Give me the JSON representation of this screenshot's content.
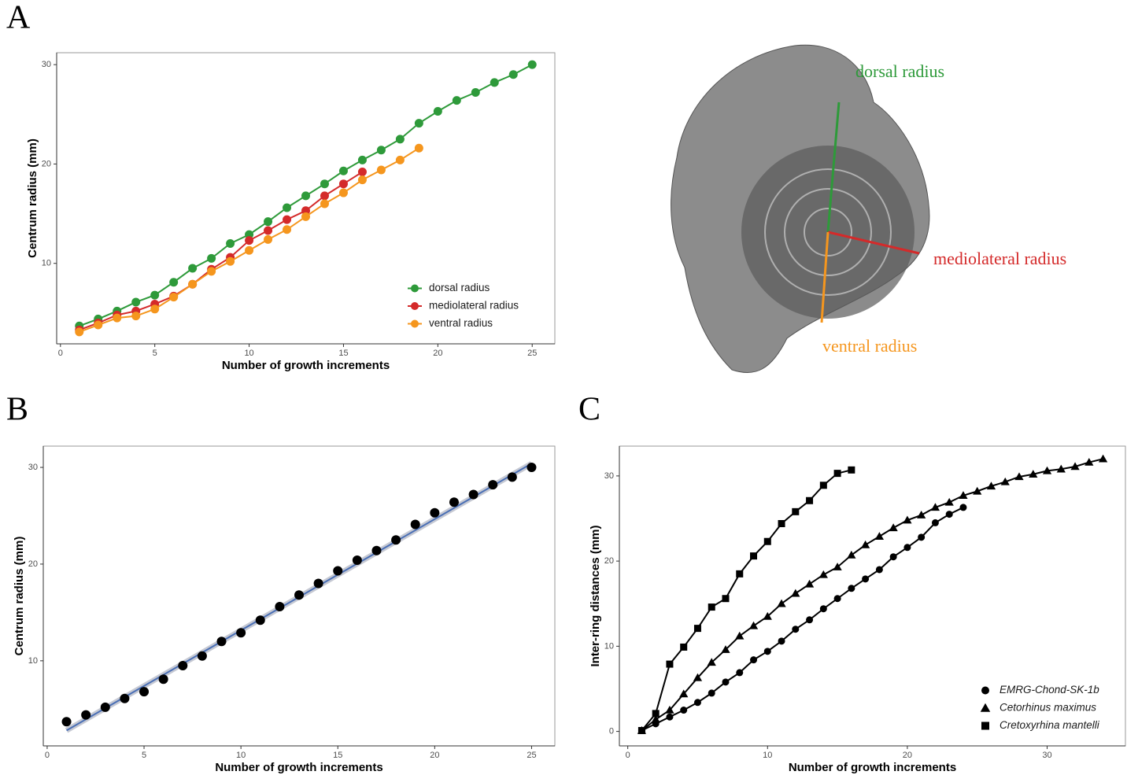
{
  "panel_labels": [
    "A",
    "B",
    "C"
  ],
  "specimen_image": {
    "labels": [
      "dorsal radius",
      "mediolateral radius",
      "ventral radius"
    ]
  },
  "chart_data": [
    {
      "type": "line",
      "x_label": "Number of growth increments",
      "y_label": "Centrum radius (mm)",
      "xlim": [
        -0.2,
        26.2
      ],
      "ylim": [
        1.9,
        31.2
      ],
      "xticks": [
        0,
        5,
        10,
        15,
        20,
        25
      ],
      "yticks": [
        10,
        20,
        30
      ],
      "legend": "bottom-right",
      "series": [
        {
          "name": "dorsal radius",
          "color": "#2e9a3a",
          "marker": "circle",
          "x": [
            1,
            2,
            3,
            4,
            5,
            6,
            7,
            8,
            9,
            10,
            11,
            12,
            13,
            14,
            15,
            16,
            17,
            18,
            19,
            20,
            21,
            22,
            23,
            24,
            25
          ],
          "values": [
            3.7,
            4.4,
            5.2,
            6.1,
            6.8,
            8.1,
            9.5,
            10.5,
            12.0,
            12.9,
            14.2,
            15.6,
            16.8,
            18.0,
            19.3,
            20.4,
            21.4,
            22.5,
            24.1,
            25.3,
            26.4,
            27.2,
            28.2,
            29.0,
            30.0
          ]
        },
        {
          "name": "mediolateral radius",
          "color": "#d42a2a",
          "marker": "circle",
          "x": [
            1,
            2,
            3,
            4,
            5,
            6,
            7,
            8,
            9,
            10,
            11,
            12,
            13,
            14,
            15,
            16
          ],
          "values": [
            3.3,
            4.0,
            4.8,
            5.2,
            5.9,
            6.7,
            7.9,
            9.4,
            10.6,
            12.3,
            13.3,
            14.4,
            15.3,
            16.8,
            18.0,
            19.2
          ]
        },
        {
          "name": "ventral radius",
          "color": "#f5961e",
          "marker": "circle",
          "x": [
            1,
            2,
            3,
            4,
            5,
            6,
            7,
            8,
            9,
            10,
            11,
            12,
            13,
            14,
            15,
            16,
            17,
            18,
            19
          ],
          "values": [
            3.1,
            3.8,
            4.5,
            4.7,
            5.4,
            6.6,
            7.9,
            9.2,
            10.2,
            11.3,
            12.4,
            13.4,
            14.7,
            16.0,
            17.1,
            18.4,
            19.4,
            20.4,
            21.6
          ]
        }
      ]
    },
    {
      "type": "scatter",
      "x_label": "Number of growth increments",
      "y_label": "Centrum radius (mm)",
      "xlim": [
        -0.2,
        26.2
      ],
      "ylim": [
        1.2,
        32.2
      ],
      "xticks": [
        0,
        5,
        10,
        15,
        20,
        25
      ],
      "yticks": [
        10,
        20,
        30
      ],
      "series": [
        {
          "color": "#000000",
          "marker": "circle",
          "x": [
            1,
            2,
            3,
            4,
            5,
            6,
            7,
            8,
            9,
            10,
            11,
            12,
            13,
            14,
            15,
            16,
            17,
            18,
            19,
            20,
            21,
            22,
            23,
            24,
            25
          ],
          "values": [
            3.7,
            4.4,
            5.2,
            6.1,
            6.8,
            8.1,
            9.5,
            10.5,
            12.0,
            12.9,
            14.2,
            15.6,
            16.8,
            18.0,
            19.3,
            20.4,
            21.4,
            22.5,
            24.1,
            25.3,
            26.4,
            27.2,
            28.2,
            29.0,
            30.0
          ]
        }
      ],
      "trend_line": {
        "color": "#4a6fb5",
        "x": [
          1,
          25
        ],
        "values": [
          2.8,
          30.4
        ]
      }
    },
    {
      "type": "line",
      "x_label": "Number of growth increments",
      "y_label": "Inter-ring distances (mm)",
      "xlim": [
        -0.6,
        35.6
      ],
      "ylim": [
        -1.7,
        33.5
      ],
      "xticks": [
        0,
        10,
        20,
        30
      ],
      "yticks": [
        0,
        10,
        20,
        30
      ],
      "legend": "bottom-right",
      "series": [
        {
          "name": "EMRG-Chond-SK-1b",
          "color": "#000000",
          "marker": "circle",
          "x": [
            1,
            2,
            3,
            4,
            5,
            6,
            7,
            8,
            9,
            10,
            11,
            12,
            13,
            14,
            15,
            16,
            17,
            18,
            19,
            20,
            21,
            22,
            23,
            24
          ],
          "values": [
            0.1,
            0.9,
            1.7,
            2.5,
            3.4,
            4.5,
            5.8,
            6.9,
            8.4,
            9.4,
            10.6,
            12.0,
            13.1,
            14.4,
            15.6,
            16.8,
            17.9,
            19.0,
            20.5,
            21.6,
            22.8,
            24.5,
            25.5,
            26.3
          ]
        },
        {
          "name": "Cetorhinus maximus",
          "color": "#000000",
          "marker": "triangle",
          "x": [
            1,
            2,
            3,
            4,
            5,
            6,
            7,
            8,
            9,
            10,
            11,
            12,
            13,
            14,
            15,
            16,
            17,
            18,
            19,
            20,
            21,
            22,
            23,
            24,
            25,
            26,
            27,
            28,
            29,
            30,
            31,
            32,
            33,
            34
          ],
          "values": [
            0.1,
            1.4,
            2.5,
            4.4,
            6.3,
            8.1,
            9.6,
            11.2,
            12.4,
            13.5,
            15.0,
            16.2,
            17.3,
            18.4,
            19.3,
            20.7,
            21.9,
            22.9,
            23.9,
            24.8,
            25.4,
            26.3,
            26.9,
            27.7,
            28.2,
            28.8,
            29.3,
            29.9,
            30.2,
            30.6,
            30.8,
            31.1,
            31.6,
            32.0
          ]
        },
        {
          "name": "Cretoxyrhina mantelli",
          "color": "#000000",
          "marker": "square",
          "x": [
            1,
            2,
            3,
            4,
            5,
            6,
            7,
            8,
            9,
            10,
            11,
            12,
            13,
            14,
            15,
            16
          ],
          "values": [
            0.1,
            2.1,
            7.9,
            9.9,
            12.1,
            14.6,
            15.6,
            18.5,
            20.6,
            22.3,
            24.4,
            25.8,
            27.1,
            28.9,
            30.3,
            30.7
          ]
        }
      ]
    }
  ]
}
